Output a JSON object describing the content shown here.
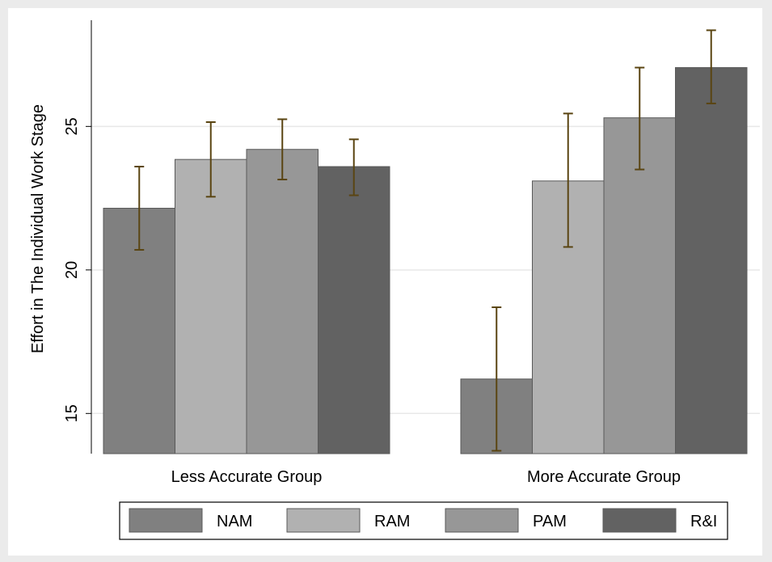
{
  "chart_data": {
    "type": "bar",
    "title": "",
    "xlabel": "",
    "ylabel": "Effort in The Individual Work Stage",
    "ylim": [
      13.6,
      28.7
    ],
    "y_ticks": [
      15,
      20,
      25
    ],
    "grid": true,
    "legend_position": "bottom",
    "categories": [
      "Less Accurate Group",
      "More Accurate Group"
    ],
    "series": [
      {
        "name": "NAM",
        "color": "#808080",
        "values": [
          22.15,
          16.2
        ],
        "ci_low": [
          20.7,
          13.7
        ],
        "ci_high": [
          23.6,
          18.7
        ]
      },
      {
        "name": "RAM",
        "color": "#b1b1b1",
        "values": [
          23.85,
          23.1
        ],
        "ci_low": [
          22.55,
          20.8
        ],
        "ci_high": [
          25.15,
          25.45
        ]
      },
      {
        "name": "PAM",
        "color": "#979797",
        "values": [
          24.2,
          25.3
        ],
        "ci_low": [
          23.15,
          23.5
        ],
        "ci_high": [
          25.25,
          27.05
        ]
      },
      {
        "name": "R&I",
        "color": "#626262",
        "values": [
          23.6,
          27.05
        ],
        "ci_low": [
          22.6,
          25.8
        ],
        "ci_high": [
          24.55,
          28.35
        ]
      }
    ],
    "bar_outline_color": "#595959",
    "error_bar_color": "#5a4512"
  }
}
